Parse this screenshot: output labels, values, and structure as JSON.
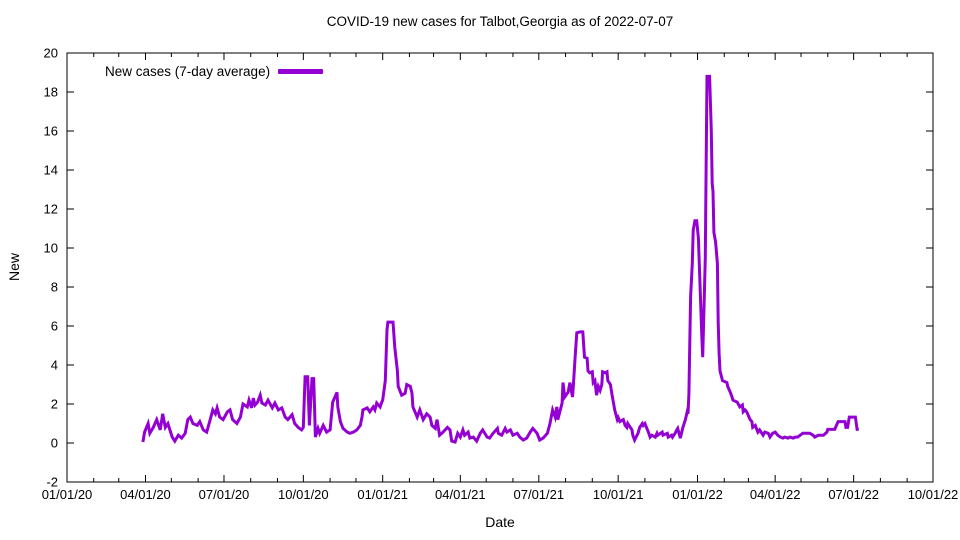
{
  "title": "COVID-19 new cases for Talbot,Georgia as of 2022-07-07",
  "chart_data": {
    "type": "line",
    "title": "COVID-19 new cases for Talbot,Georgia as of 2022-07-07",
    "xlabel": "Date",
    "ylabel": "New",
    "ylim": [
      -2,
      20
    ],
    "y_tick_step": 2,
    "grid": false,
    "x_unit": "days since 2020-01-01",
    "x_total_days": 1004,
    "x_range": [
      "01/01/20",
      "10/01/22"
    ],
    "x_ticks": [
      {
        "label": "01/01/20",
        "day": 0
      },
      {
        "label": "04/01/20",
        "day": 91
      },
      {
        "label": "07/01/20",
        "day": 182
      },
      {
        "label": "10/01/20",
        "day": 274
      },
      {
        "label": "01/01/21",
        "day": 366
      },
      {
        "label": "04/01/21",
        "day": 456
      },
      {
        "label": "07/01/21",
        "day": 547
      },
      {
        "label": "10/01/21",
        "day": 639
      },
      {
        "label": "01/01/22",
        "day": 731
      },
      {
        "label": "04/01/22",
        "day": 821
      },
      {
        "label": "07/01/22",
        "day": 912
      },
      {
        "label": "10/01/22",
        "day": 1004
      }
    ],
    "legend": {
      "label": "New cases (7-day average)",
      "position": "top-left-inside"
    },
    "line_color": "#9400D3",
    "axis_color": "#000000",
    "text_color": "#000000",
    "series": [
      {
        "name": "New cases (7-day average)",
        "points": [
          [
            88,
            0.05
          ],
          [
            90,
            0.56
          ],
          [
            94,
            1.0
          ],
          [
            96,
            0.5
          ],
          [
            100,
            0.8
          ],
          [
            104,
            1.2
          ],
          [
            108,
            0.67
          ],
          [
            111,
            1.5
          ],
          [
            114,
            0.8
          ],
          [
            117,
            1.0
          ],
          [
            122,
            0.3
          ],
          [
            125,
            0.1
          ],
          [
            129,
            0.4
          ],
          [
            133,
            0.25
          ],
          [
            137,
            0.5
          ],
          [
            140,
            1.2
          ],
          [
            143,
            1.33
          ],
          [
            146,
            1.0
          ],
          [
            151,
            0.9
          ],
          [
            154,
            1.1
          ],
          [
            158,
            0.67
          ],
          [
            162,
            0.56
          ],
          [
            166,
            1.2
          ],
          [
            169,
            1.7
          ],
          [
            172,
            1.5
          ],
          [
            174,
            1.8
          ],
          [
            177,
            1.33
          ],
          [
            181,
            1.2
          ],
          [
            186,
            1.6
          ],
          [
            189,
            1.7
          ],
          [
            192,
            1.2
          ],
          [
            197,
            1.0
          ],
          [
            201,
            1.33
          ],
          [
            204,
            2.0
          ],
          [
            209,
            1.85
          ],
          [
            211,
            2.2
          ],
          [
            214,
            1.8
          ],
          [
            216,
            2.3
          ],
          [
            218,
            1.95
          ],
          [
            221,
            2.1
          ],
          [
            224,
            2.45
          ],
          [
            226,
            2.05
          ],
          [
            230,
            1.95
          ],
          [
            233,
            2.2
          ],
          [
            238,
            1.8
          ],
          [
            241,
            2.05
          ],
          [
            245,
            1.7
          ],
          [
            249,
            1.8
          ],
          [
            253,
            1.33
          ],
          [
            256,
            1.2
          ],
          [
            261,
            1.45
          ],
          [
            264,
            1.0
          ],
          [
            268,
            0.8
          ],
          [
            272,
            0.67
          ],
          [
            274,
            0.8
          ],
          [
            276,
            3.4
          ],
          [
            279,
            3.4
          ],
          [
            281,
            0.9
          ],
          [
            284,
            3.3
          ],
          [
            286,
            3.3
          ],
          [
            288,
            0.3
          ],
          [
            291,
            0.75
          ],
          [
            293,
            0.5
          ],
          [
            297,
            0.9
          ],
          [
            301,
            0.56
          ],
          [
            305,
            0.67
          ],
          [
            308,
            2.1
          ],
          [
            313,
            2.6
          ],
          [
            314,
            1.85
          ],
          [
            317,
            1.1
          ],
          [
            320,
            0.75
          ],
          [
            325,
            0.56
          ],
          [
            328,
            0.5
          ],
          [
            332,
            0.56
          ],
          [
            336,
            0.67
          ],
          [
            340,
            0.9
          ],
          [
            342,
            1.33
          ],
          [
            343,
            1.7
          ],
          [
            348,
            1.8
          ],
          [
            351,
            1.6
          ],
          [
            355,
            1.85
          ],
          [
            357,
            1.7
          ],
          [
            359,
            2.05
          ],
          [
            363,
            1.85
          ],
          [
            365,
            2.1
          ],
          [
            366,
            2.2
          ],
          [
            369,
            3.2
          ],
          [
            371,
            5.8
          ],
          [
            372,
            6.2
          ],
          [
            378,
            6.2
          ],
          [
            380,
            4.9
          ],
          [
            383,
            3.7
          ],
          [
            384,
            2.9
          ],
          [
            388,
            2.45
          ],
          [
            392,
            2.55
          ],
          [
            394,
            3.0
          ],
          [
            398,
            2.9
          ],
          [
            400,
            2.55
          ],
          [
            401,
            1.85
          ],
          [
            406,
            1.33
          ],
          [
            409,
            1.7
          ],
          [
            413,
            1.2
          ],
          [
            417,
            1.5
          ],
          [
            421,
            1.33
          ],
          [
            423,
            0.9
          ],
          [
            427,
            0.75
          ],
          [
            429,
            1.2
          ],
          [
            432,
            0.4
          ],
          [
            436,
            0.56
          ],
          [
            441,
            0.8
          ],
          [
            444,
            0.67
          ],
          [
            446,
            0.1
          ],
          [
            450,
            0.05
          ],
          [
            453,
            0.5
          ],
          [
            456,
            0.3
          ],
          [
            459,
            0.67
          ],
          [
            461,
            0.4
          ],
          [
            465,
            0.56
          ],
          [
            467,
            0.25
          ],
          [
            471,
            0.3
          ],
          [
            475,
            0.1
          ],
          [
            479,
            0.5
          ],
          [
            482,
            0.67
          ],
          [
            487,
            0.3
          ],
          [
            490,
            0.25
          ],
          [
            494,
            0.5
          ],
          [
            499,
            0.75
          ],
          [
            500,
            0.5
          ],
          [
            504,
            0.4
          ],
          [
            508,
            0.75
          ],
          [
            510,
            0.56
          ],
          [
            514,
            0.67
          ],
          [
            517,
            0.4
          ],
          [
            522,
            0.5
          ],
          [
            525,
            0.3
          ],
          [
            529,
            0.15
          ],
          [
            533,
            0.25
          ],
          [
            537,
            0.56
          ],
          [
            540,
            0.75
          ],
          [
            545,
            0.5
          ],
          [
            548,
            0.15
          ],
          [
            552,
            0.25
          ],
          [
            557,
            0.5
          ],
          [
            560,
            1.0
          ],
          [
            563,
            1.7
          ],
          [
            566,
            1.33
          ],
          [
            568,
            1.85
          ],
          [
            569,
            1.2
          ],
          [
            574,
            2.05
          ],
          [
            575,
            3.1
          ],
          [
            577,
            2.36
          ],
          [
            580,
            2.55
          ],
          [
            581,
            2.6
          ],
          [
            583,
            3.1
          ],
          [
            586,
            2.36
          ],
          [
            587,
            2.9
          ],
          [
            589,
            4.3
          ],
          [
            591,
            5.65
          ],
          [
            595,
            5.7
          ],
          [
            598,
            5.7
          ],
          [
            600,
            4.4
          ],
          [
            603,
            4.35
          ],
          [
            604,
            3.7
          ],
          [
            606,
            3.6
          ],
          [
            609,
            3.65
          ],
          [
            610,
            3.1
          ],
          [
            612,
            3.2
          ],
          [
            614,
            2.45
          ],
          [
            616,
            2.9
          ],
          [
            618,
            2.7
          ],
          [
            620,
            3.0
          ],
          [
            621,
            3.65
          ],
          [
            624,
            3.6
          ],
          [
            626,
            3.65
          ],
          [
            627,
            3.2
          ],
          [
            630,
            3.0
          ],
          [
            632,
            2.45
          ],
          [
            633,
            2.2
          ],
          [
            635,
            1.7
          ],
          [
            638,
            1.2
          ],
          [
            639,
            1.3
          ],
          [
            641,
            1.1
          ],
          [
            645,
            1.2
          ],
          [
            647,
            0.9
          ],
          [
            649,
            0.8
          ],
          [
            650,
            1.0
          ],
          [
            655,
            0.67
          ],
          [
            656,
            0.4
          ],
          [
            658,
            0.15
          ],
          [
            662,
            0.5
          ],
          [
            664,
            0.8
          ],
          [
            667,
            1.0
          ],
          [
            668,
            0.9
          ],
          [
            670,
            1.0
          ],
          [
            674,
            0.56
          ],
          [
            676,
            0.3
          ],
          [
            678,
            0.4
          ],
          [
            682,
            0.3
          ],
          [
            684,
            0.5
          ],
          [
            685,
            0.4
          ],
          [
            690,
            0.56
          ],
          [
            691,
            0.4
          ],
          [
            696,
            0.5
          ],
          [
            697,
            0.3
          ],
          [
            701,
            0.4
          ],
          [
            702,
            0.3
          ],
          [
            705,
            0.5
          ],
          [
            707,
            0.67
          ],
          [
            708,
            0.75
          ],
          [
            711,
            0.25
          ],
          [
            714,
            0.8
          ],
          [
            717,
            1.2
          ],
          [
            719,
            1.6
          ],
          [
            720,
            1.5
          ],
          [
            721,
            2.5
          ],
          [
            723,
            7.5
          ],
          [
            725,
            9.2
          ],
          [
            726,
            10.9
          ],
          [
            728,
            11.4
          ],
          [
            730,
            11.4
          ],
          [
            732,
            10.5
          ],
          [
            734,
            8.0
          ],
          [
            736,
            5.5
          ],
          [
            737,
            4.4
          ],
          [
            740,
            9.5
          ],
          [
            741,
            14.0
          ],
          [
            742,
            18.8
          ],
          [
            745,
            18.8
          ],
          [
            747,
            16.0
          ],
          [
            748,
            13.3
          ],
          [
            749,
            12.9
          ],
          [
            750,
            10.8
          ],
          [
            752,
            10.3
          ],
          [
            754,
            9.2
          ],
          [
            755,
            6.2
          ],
          [
            756,
            4.6
          ],
          [
            757,
            3.7
          ],
          [
            760,
            3.2
          ],
          [
            765,
            3.1
          ],
          [
            766,
            2.9
          ],
          [
            769,
            2.6
          ],
          [
            771,
            2.36
          ],
          [
            772,
            2.2
          ],
          [
            777,
            2.1
          ],
          [
            780,
            1.85
          ],
          [
            783,
            1.95
          ],
          [
            784,
            1.6
          ],
          [
            786,
            1.7
          ],
          [
            788,
            1.6
          ],
          [
            792,
            1.2
          ],
          [
            794,
            1.1
          ],
          [
            795,
            0.8
          ],
          [
            798,
            0.9
          ],
          [
            800,
            0.67
          ],
          [
            801,
            0.56
          ],
          [
            803,
            0.67
          ],
          [
            807,
            0.4
          ],
          [
            809,
            0.56
          ],
          [
            813,
            0.5
          ],
          [
            815,
            0.3
          ],
          [
            818,
            0.5
          ],
          [
            821,
            0.56
          ],
          [
            824,
            0.4
          ],
          [
            827,
            0.3
          ],
          [
            830,
            0.25
          ],
          [
            832,
            0.3
          ],
          [
            836,
            0.25
          ],
          [
            838,
            0.3
          ],
          [
            842,
            0.25
          ],
          [
            844,
            0.3
          ],
          [
            847,
            0.3
          ],
          [
            850,
            0.4
          ],
          [
            853,
            0.5
          ],
          [
            861,
            0.5
          ],
          [
            865,
            0.4
          ],
          [
            867,
            0.3
          ],
          [
            871,
            0.4
          ],
          [
            877,
            0.4
          ],
          [
            881,
            0.56
          ],
          [
            882,
            0.7
          ],
          [
            890,
            0.7
          ],
          [
            894,
            1.1
          ],
          [
            902,
            1.1
          ],
          [
            903,
            0.8
          ],
          [
            905,
            0.8
          ],
          [
            907,
            1.33
          ],
          [
            914,
            1.33
          ],
          [
            916,
            0.7
          ],
          [
            918,
            0.7
          ]
        ]
      }
    ]
  }
}
